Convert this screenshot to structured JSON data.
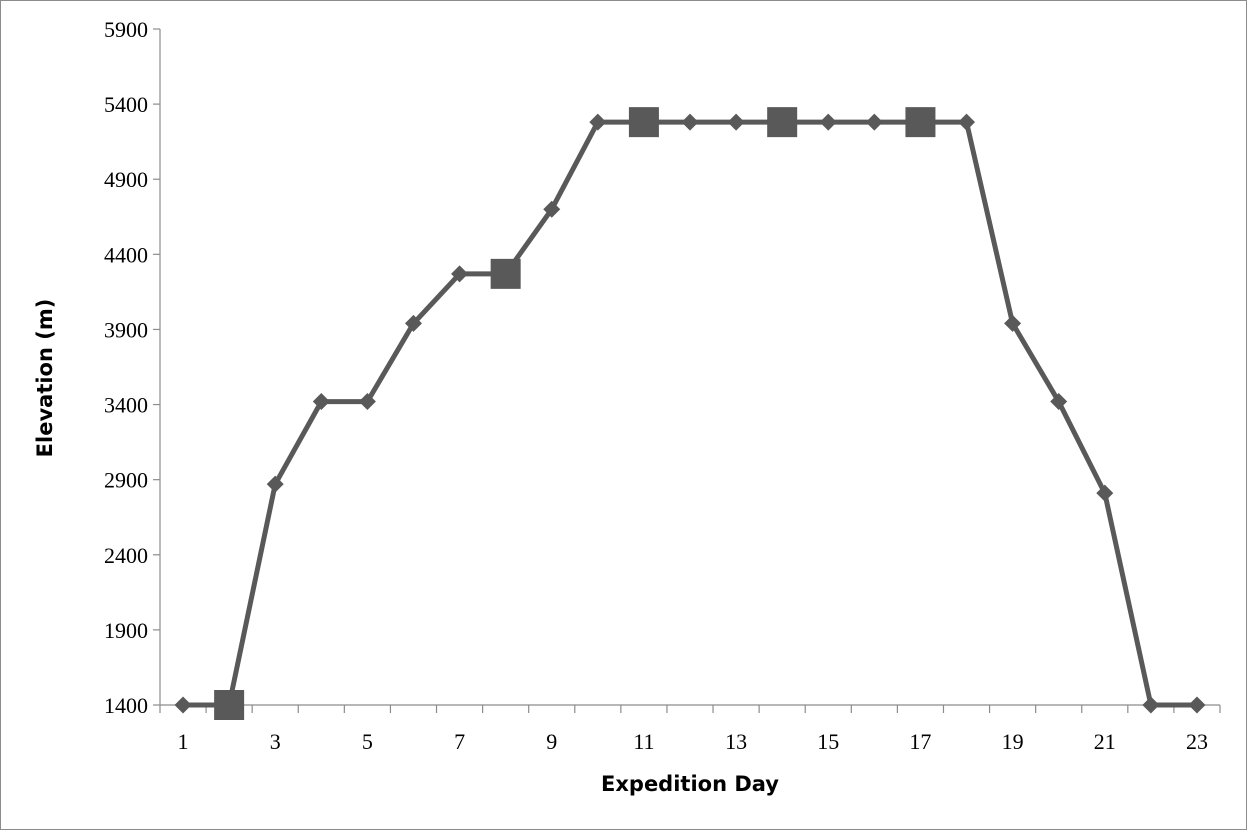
{
  "chart_data": {
    "type": "line",
    "title": "",
    "xlabel": "Expedition Day",
    "ylabel": "Elevation (m)",
    "xlim": [
      0.5,
      23.5
    ],
    "ylim": [
      1400,
      5900
    ],
    "x_ticks": [
      1,
      3,
      5,
      7,
      9,
      11,
      13,
      15,
      17,
      19,
      21,
      23
    ],
    "y_ticks": [
      1400,
      1900,
      2400,
      2900,
      3400,
      3900,
      4400,
      4900,
      5400,
      5900
    ],
    "grid": false,
    "legend": "none",
    "series": [
      {
        "x": [
          1,
          2,
          3,
          4,
          5,
          6,
          7,
          8,
          9,
          10,
          11,
          12,
          13,
          14,
          15,
          16,
          17,
          18,
          19,
          20,
          21,
          22,
          23
        ],
        "y": [
          1400,
          1400,
          2870,
          3420,
          3420,
          3940,
          4270,
          4270,
          4700,
          5280,
          5280,
          5280,
          5280,
          5280,
          5280,
          5280,
          5280,
          5280,
          3940,
          3420,
          2810,
          1400,
          1400
        ],
        "color": "#595959"
      },
      {
        "marker": "square",
        "x": [
          2,
          8,
          11,
          14,
          17
        ],
        "y": [
          1400,
          4270,
          5280,
          5280,
          5280
        ],
        "color": "#595959"
      }
    ]
  }
}
